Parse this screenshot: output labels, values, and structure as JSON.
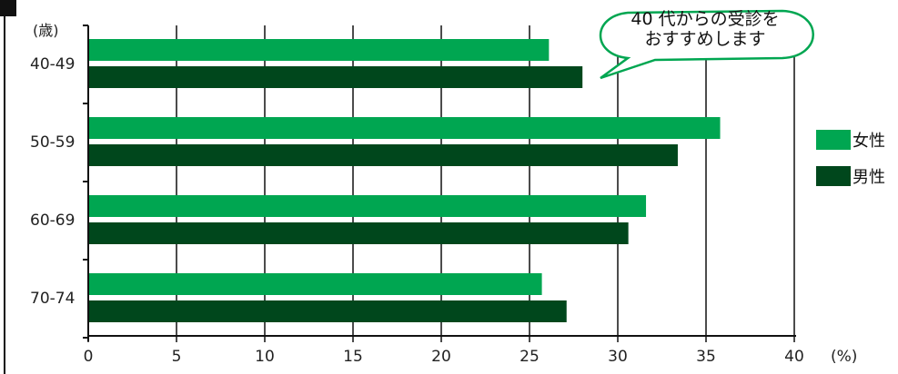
{
  "chart_data": {
    "type": "bar",
    "orientation": "horizontal",
    "y_unit_label": "(歳)",
    "x_unit_label": "(%)",
    "categories": [
      "40-49",
      "50-59",
      "60-69",
      "70-74"
    ],
    "series": [
      {
        "name": "女性",
        "color": "#00a651",
        "values": [
          26.1,
          35.8,
          31.6,
          25.7
        ]
      },
      {
        "name": "男性",
        "color": "#00471c",
        "values": [
          28.0,
          33.4,
          30.6,
          27.1
        ]
      }
    ],
    "xlim": [
      0,
      40
    ],
    "xticks": [
      "0",
      "5",
      "10",
      "15",
      "20",
      "25",
      "30",
      "35",
      "40"
    ],
    "grid": true,
    "legend": "right",
    "annotation": [
      "40 代からの受診を",
      "おすすめします"
    ]
  }
}
